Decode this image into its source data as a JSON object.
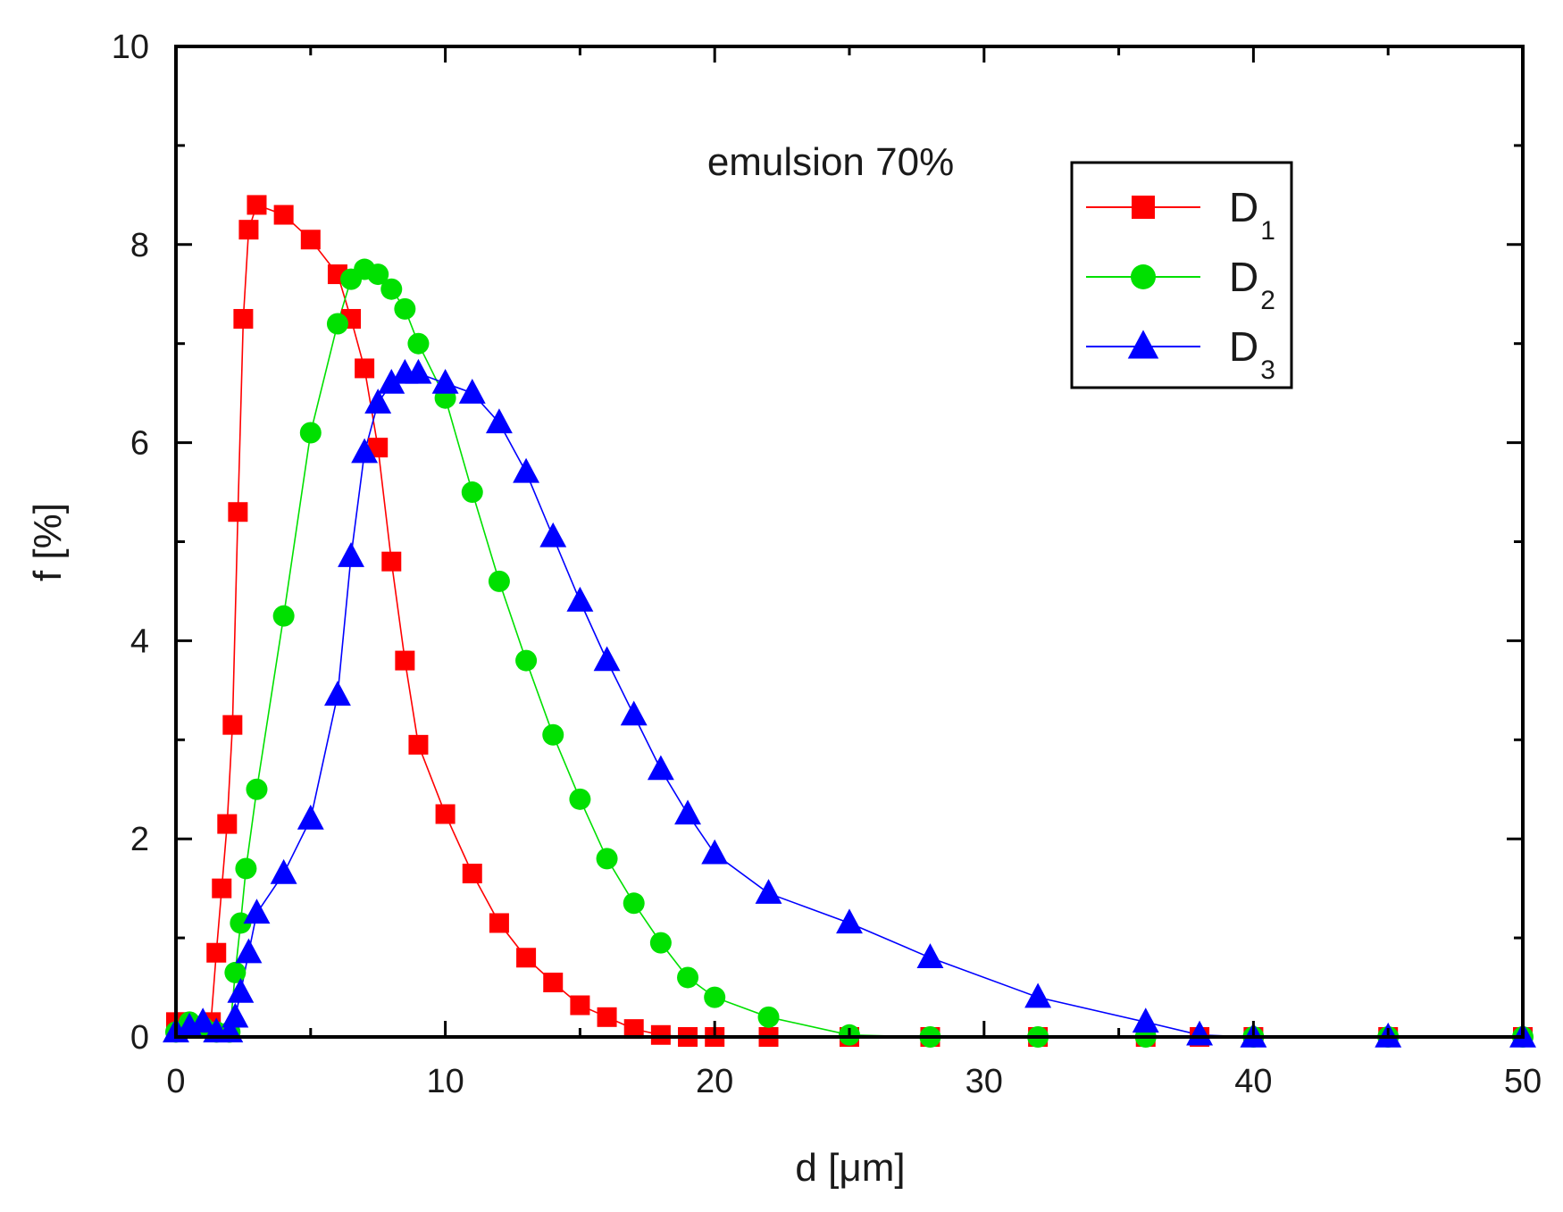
{
  "chart_data": {
    "type": "line",
    "title": "",
    "annotation": "emulsion 70%",
    "xlabel": "d [μm]",
    "ylabel": "f [%]",
    "xlim": [
      0,
      50
    ],
    "ylim": [
      0,
      10
    ],
    "x_ticks": [
      0,
      10,
      20,
      30,
      40,
      50
    ],
    "y_ticks": [
      0,
      2,
      4,
      6,
      8,
      10
    ],
    "x_tick_labels": [
      "0",
      "10",
      "20",
      "30",
      "40",
      "50"
    ],
    "y_tick_labels": [
      "0",
      "2",
      "4",
      "6",
      "8",
      "10"
    ],
    "grid": false,
    "legend_position": "top-right",
    "series": [
      {
        "name": "D",
        "subscript": "1",
        "color": "#ff0000",
        "marker": "square",
        "x": [
          0,
          0.3,
          0.7,
          1.0,
          1.3,
          1.5,
          1.7,
          1.9,
          2.1,
          2.3,
          2.5,
          2.7,
          3.0,
          4.0,
          5.0,
          6.0,
          6.5,
          7.0,
          7.5,
          8.0,
          8.5,
          9.0,
          10.0,
          11.0,
          12.0,
          13.0,
          14.0,
          15.0,
          16.0,
          17.0,
          18.0,
          19.0,
          20.0,
          22.0,
          25.0,
          28.0,
          32.0,
          36.0,
          38.0,
          40.0,
          45.0,
          50.0
        ],
        "y": [
          0.15,
          0.15,
          0.1,
          0.1,
          0.15,
          0.85,
          1.5,
          2.15,
          3.15,
          5.3,
          7.25,
          8.15,
          8.4,
          8.3,
          8.05,
          7.7,
          7.25,
          6.75,
          5.95,
          4.8,
          3.8,
          2.95,
          2.25,
          1.65,
          1.15,
          0.8,
          0.55,
          0.32,
          0.2,
          0.08,
          0.02,
          0,
          0,
          0,
          0,
          0,
          0,
          0,
          0,
          0,
          0,
          0
        ]
      },
      {
        "name": "D",
        "subscript": "2",
        "color": "#00e000",
        "marker": "circle",
        "x": [
          0,
          0.5,
          1.0,
          1.5,
          2.0,
          2.2,
          2.4,
          2.6,
          3.0,
          4.0,
          5.0,
          6.0,
          6.5,
          7.0,
          7.5,
          8.0,
          8.5,
          9.0,
          10.0,
          11.0,
          12.0,
          13.0,
          14.0,
          15.0,
          16.0,
          17.0,
          18.0,
          19.0,
          20.0,
          22.0,
          25.0,
          28.0,
          32.0,
          36.0,
          40.0,
          45.0,
          50.0
        ],
        "y": [
          0.05,
          0.15,
          0.1,
          0.05,
          0.05,
          0.65,
          1.15,
          1.7,
          2.5,
          4.25,
          6.1,
          7.2,
          7.65,
          7.75,
          7.7,
          7.55,
          7.35,
          7.0,
          6.45,
          5.5,
          4.6,
          3.8,
          3.05,
          2.4,
          1.8,
          1.35,
          0.95,
          0.6,
          0.4,
          0.2,
          0.02,
          0,
          0,
          0,
          0,
          0,
          0
        ]
      },
      {
        "name": "D",
        "subscript": "3",
        "color": "#0000ff",
        "marker": "triangle",
        "x": [
          0,
          0.5,
          1.0,
          1.5,
          2.0,
          2.2,
          2.4,
          2.7,
          3.0,
          4.0,
          5.0,
          6.0,
          6.5,
          7.0,
          7.5,
          8.0,
          8.5,
          9.0,
          10.0,
          11.0,
          12.0,
          13.0,
          14.0,
          15.0,
          16.0,
          17.0,
          18.0,
          19.0,
          20.0,
          22.0,
          25.0,
          28.0,
          32.0,
          36.0,
          38.0,
          40.0,
          45.0,
          50.0
        ],
        "y": [
          0.05,
          0.1,
          0.15,
          0.05,
          0.05,
          0.2,
          0.45,
          0.85,
          1.25,
          1.65,
          2.2,
          3.45,
          4.85,
          5.9,
          6.4,
          6.6,
          6.7,
          6.7,
          6.6,
          6.5,
          6.2,
          5.7,
          5.05,
          4.4,
          3.8,
          3.25,
          2.7,
          2.25,
          1.85,
          1.45,
          1.15,
          0.8,
          0.4,
          0.15,
          0.02,
          0,
          0,
          0
        ]
      }
    ]
  }
}
